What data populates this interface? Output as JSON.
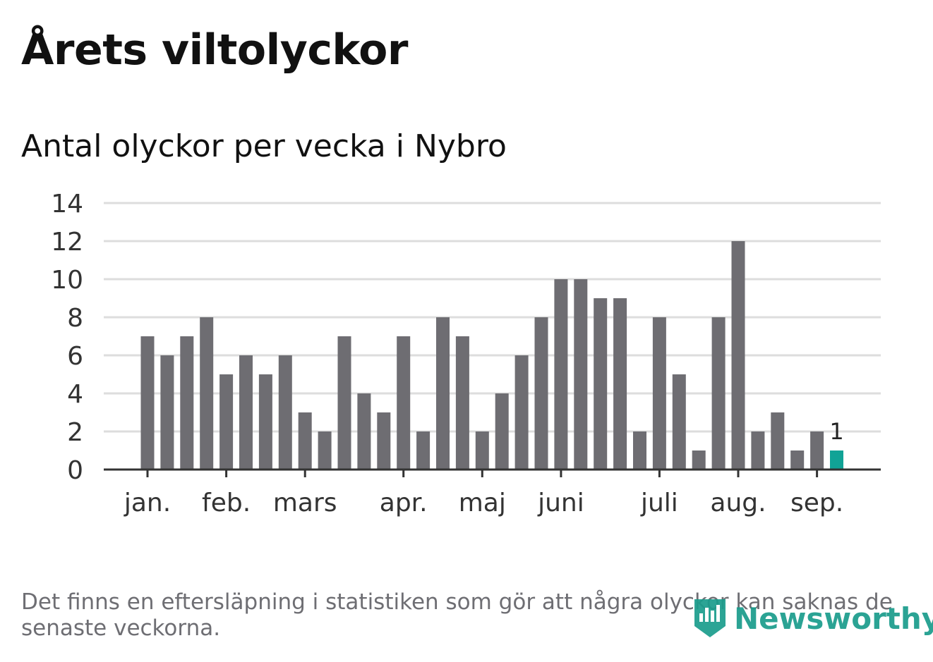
{
  "title": "Årets viltolyckor",
  "subtitle": "Antal olyckor per vecka i Nybro",
  "footnote": "Det finns en eftersläpning i statistiken som gör att några olyckor kan saknas de senaste veckorna.",
  "logo": {
    "name": "Newsworthy",
    "icon": "newsworthy-logo-icon"
  },
  "colors": {
    "bar": "#6e6d72",
    "highlight": "#11a396",
    "grid": "#dddddd",
    "axis": "#333333"
  },
  "chart_data": {
    "type": "bar",
    "ylim": [
      0,
      14
    ],
    "yticks": [
      "0",
      "2",
      "4",
      "6",
      "8",
      "10",
      "12",
      "14"
    ],
    "values": [
      7,
      6,
      7,
      8,
      5,
      6,
      5,
      6,
      3,
      2,
      7,
      4,
      3,
      7,
      2,
      8,
      7,
      2,
      4,
      6,
      8,
      10,
      10,
      9,
      9,
      2,
      8,
      5,
      1,
      8,
      12,
      2,
      3,
      1,
      2,
      1
    ],
    "highlight_index": 35,
    "highlight_label": "1",
    "month_labels": [
      {
        "label": "jan.",
        "week_index": 0
      },
      {
        "label": "feb.",
        "week_index": 4
      },
      {
        "label": "mars",
        "week_index": 8
      },
      {
        "label": "apr.",
        "week_index": 13
      },
      {
        "label": "maj",
        "week_index": 17
      },
      {
        "label": "juni",
        "week_index": 21
      },
      {
        "label": "juli",
        "week_index": 26
      },
      {
        "label": "aug.",
        "week_index": 30
      },
      {
        "label": "sep.",
        "week_index": 34
      }
    ],
    "grid": true,
    "legend": "none"
  }
}
